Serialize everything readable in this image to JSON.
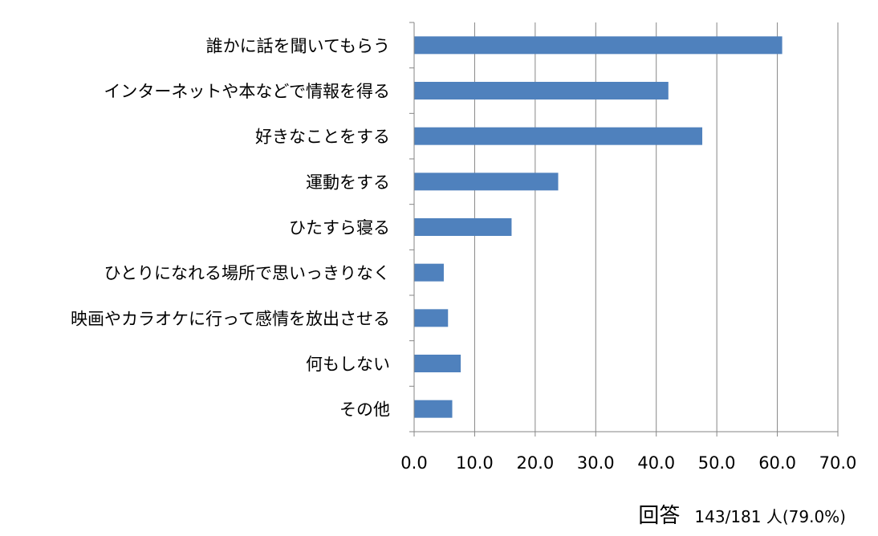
{
  "chart_data": {
    "type": "bar",
    "orientation": "horizontal",
    "categories": [
      "誰かに話を聞いてもらう",
      "インターネットや本などで情報を得る",
      "好きなことをする",
      "運動をする",
      "ひたすら寝る",
      "ひとりになれる場所で思いっきりなく",
      "映画やカラオケに行って感情を放出させる",
      "何もしない",
      "その他"
    ],
    "values": [
      60.8,
      42.0,
      47.6,
      23.8,
      16.1,
      4.9,
      5.6,
      7.7,
      6.3
    ],
    "xlim": [
      0,
      70
    ],
    "xticks": [
      "0.0",
      "10.0",
      "20.0",
      "30.0",
      "40.0",
      "50.0",
      "60.0",
      "70.0"
    ],
    "grid": true,
    "bar_color": "#4F81BD",
    "grid_color": "#868686",
    "title": "",
    "xlabel": "",
    "ylabel": ""
  },
  "footnote": {
    "label": "回答",
    "value": "143/181 人(79.0%)"
  }
}
